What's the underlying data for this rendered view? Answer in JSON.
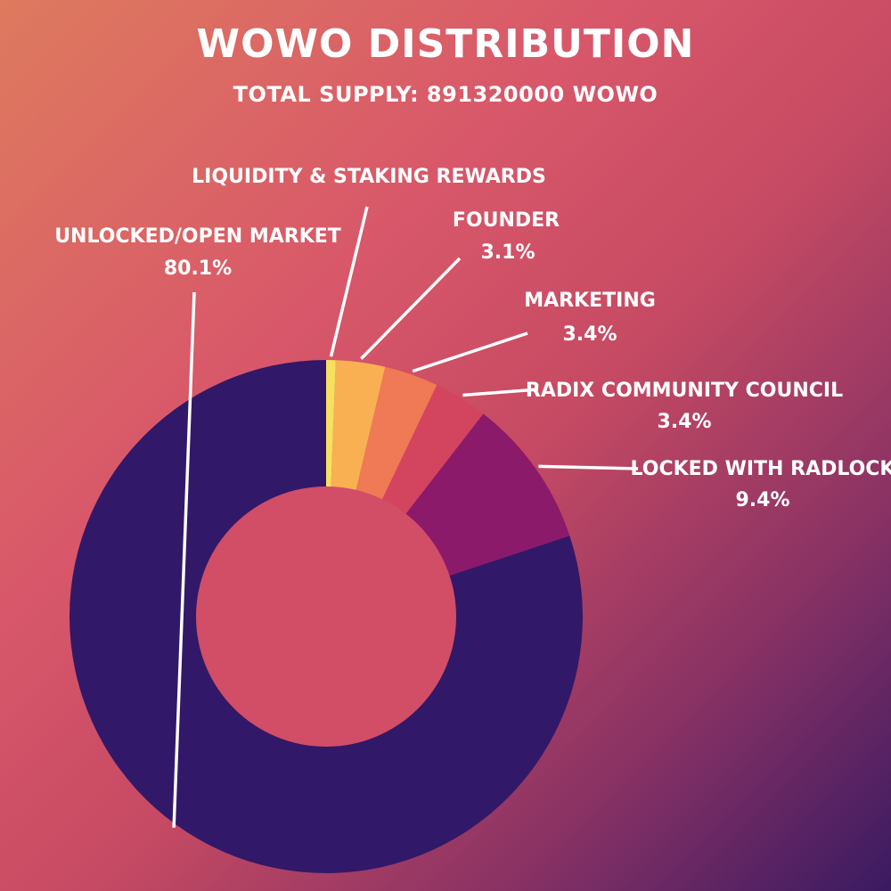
{
  "chart_data": {
    "type": "pie",
    "title": "WOWO DISTRIBUTION",
    "subtitle": "TOTAL SUPPLY: 891320000 WOWO",
    "slices": [
      {
        "label": "LIQUIDITY & STAKING REWARDS",
        "value": 0.6,
        "value_label": "",
        "color": "#f6e05e"
      },
      {
        "label": "FOUNDER",
        "value": 3.1,
        "value_label": "3.1%",
        "color": "#f9b053"
      },
      {
        "label": "MARKETING",
        "value": 3.4,
        "value_label": "3.4%",
        "color": "#ef7a55"
      },
      {
        "label": "RADIX COMMUNITY COUNCIL",
        "value": 3.4,
        "value_label": "3.4%",
        "color": "#d3455e"
      },
      {
        "label": "LOCKED WITH RADLOCK",
        "value": 9.4,
        "value_label": "9.4%",
        "color": "#8c1a6b"
      },
      {
        "label": "UNLOCKED/OPEN MARKET",
        "value": 80.1,
        "value_label": "80.1%",
        "color": "#321868"
      }
    ],
    "donut": true
  }
}
